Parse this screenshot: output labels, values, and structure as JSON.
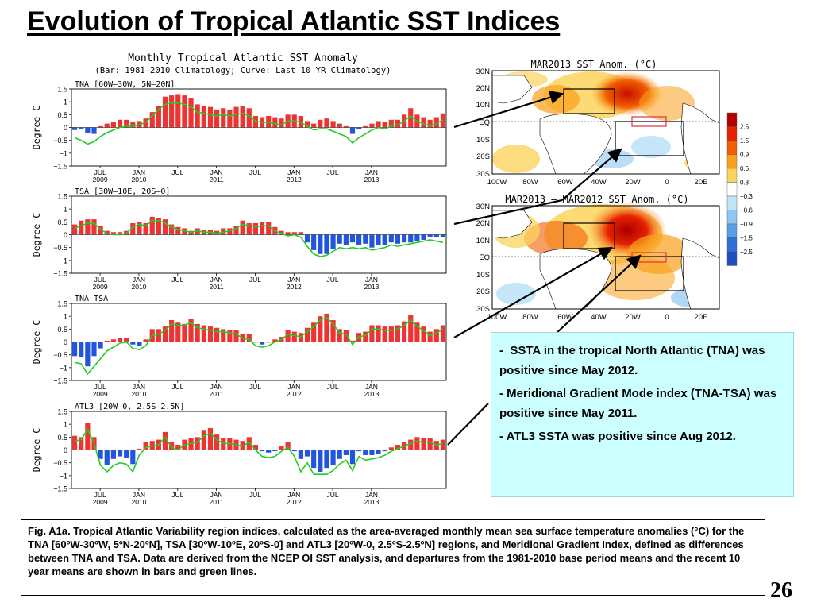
{
  "slide": {
    "title": "Evolution of Tropical Atlantic SST Indices",
    "page_number": "26"
  },
  "chart_header": {
    "title": "Monthly Tropical Atlantic SST Anomaly",
    "subtitle": "(Bar: 1981—2010 Climatology; Curve: Last 10 YR Climatology)"
  },
  "chart_data": [
    {
      "type": "bar",
      "label": "TNA [60W—30W, 5N—20N]",
      "ylabel": "Degree C",
      "ylim": [
        -1.5,
        1.5
      ],
      "yticks": [
        "1.5",
        "1",
        "0.5",
        "0",
        "−0.5",
        "−1",
        "−1.5"
      ],
      "xticks": [
        [
          "JUL",
          "2009"
        ],
        [
          "JAN",
          "2010"
        ],
        [
          "JUL",
          ""
        ],
        [
          "JAN",
          "2011"
        ],
        [
          "JUL",
          ""
        ],
        [
          "JAN",
          "2012"
        ],
        [
          "JUL",
          ""
        ],
        [
          "JAN",
          "2013"
        ]
      ],
      "values": [
        -0.1,
        -0.05,
        -0.2,
        -0.25,
        0.05,
        0.15,
        0.2,
        0.3,
        0.3,
        0.2,
        0.25,
        0.35,
        0.6,
        0.85,
        1.2,
        1.25,
        1.3,
        1.25,
        1.15,
        0.9,
        0.85,
        0.8,
        0.7,
        0.75,
        0.7,
        0.8,
        0.85,
        0.75,
        0.45,
        0.4,
        0.45,
        0.4,
        0.35,
        0.5,
        0.5,
        0.45,
        0.25,
        0.15,
        0.3,
        0.35,
        0.25,
        0.15,
        0.05,
        -0.25,
        -0.05,
        0.05,
        0.15,
        0.25,
        0.2,
        0.3,
        0.3,
        0.5,
        0.75,
        0.5,
        0.4,
        0.3,
        0.4,
        0.55
      ],
      "curve": [
        -0.4,
        -0.5,
        -0.65,
        -0.55,
        -0.35,
        -0.2,
        -0.1,
        0.0,
        0.05,
        0.05,
        0.1,
        0.2,
        0.45,
        0.7,
        0.9,
        0.95,
        0.95,
        0.9,
        0.8,
        0.6,
        0.55,
        0.5,
        0.45,
        0.5,
        0.45,
        0.5,
        0.55,
        0.45,
        0.25,
        0.2,
        0.2,
        0.15,
        0.1,
        0.25,
        0.25,
        0.2,
        0.05,
        -0.1,
        -0.05,
        -0.05,
        -0.15,
        -0.25,
        -0.35,
        -0.6,
        -0.4,
        -0.25,
        -0.1,
        0.0,
        -0.05,
        0.05,
        0.1,
        0.25,
        0.45,
        0.25,
        0.15,
        0.05,
        0.15,
        0.3
      ]
    },
    {
      "type": "bar",
      "label": "TSA [30W—10E, 20S—0]",
      "ylabel": "Degree C",
      "ylim": [
        -1.5,
        1.5
      ],
      "yticks": [
        "1.5",
        "1",
        "0.5",
        "0",
        "−0.5",
        "−1",
        "−1.5"
      ],
      "xticks": [
        [
          "JUL",
          "2009"
        ],
        [
          "JAN",
          "2010"
        ],
        [
          "JUL",
          ""
        ],
        [
          "JAN",
          "2011"
        ],
        [
          "JUL",
          ""
        ],
        [
          "JAN",
          "2012"
        ],
        [
          "JUL",
          ""
        ],
        [
          "JAN",
          "2013"
        ]
      ],
      "values": [
        0.4,
        0.55,
        0.6,
        0.6,
        0.35,
        0.15,
        0.1,
        0.1,
        0.15,
        0.45,
        0.5,
        0.45,
        0.7,
        0.65,
        0.6,
        0.4,
        0.3,
        0.25,
        0.15,
        0.25,
        0.2,
        0.2,
        0.15,
        0.25,
        0.25,
        0.35,
        0.55,
        0.45,
        0.45,
        0.5,
        0.5,
        0.3,
        0.15,
        0.1,
        0.1,
        0.1,
        -0.3,
        -0.6,
        -0.75,
        -0.75,
        -0.55,
        -0.35,
        -0.4,
        -0.3,
        -0.4,
        -0.35,
        -0.5,
        -0.4,
        -0.4,
        -0.3,
        -0.35,
        -0.3,
        -0.3,
        -0.25,
        -0.2,
        -0.1,
        -0.1,
        -0.1
      ],
      "curve": [
        0.25,
        0.35,
        0.45,
        0.45,
        0.2,
        0.05,
        0.0,
        0.0,
        0.05,
        0.3,
        0.4,
        0.35,
        0.55,
        0.55,
        0.45,
        0.3,
        0.2,
        0.15,
        0.1,
        0.15,
        0.1,
        0.1,
        0.05,
        0.1,
        0.15,
        0.25,
        0.4,
        0.35,
        0.3,
        0.35,
        0.35,
        0.15,
        0.05,
        -0.05,
        0.0,
        -0.1,
        -0.45,
        -0.75,
        -0.85,
        -0.8,
        -0.65,
        -0.5,
        -0.55,
        -0.5,
        -0.55,
        -0.5,
        -0.6,
        -0.55,
        -0.5,
        -0.4,
        -0.45,
        -0.4,
        -0.35,
        -0.3,
        -0.25,
        -0.2,
        -0.25,
        -0.3
      ]
    },
    {
      "type": "bar",
      "label": "TNA—TSA",
      "ylabel": "Degree C",
      "ylim": [
        -1.5,
        1.5
      ],
      "yticks": [
        "1.5",
        "1",
        "0.5",
        "0",
        "−0.5",
        "−1",
        "−1.5"
      ],
      "xticks": [
        [
          "JUL",
          "2009"
        ],
        [
          "JAN",
          "2010"
        ],
        [
          "JUL",
          ""
        ],
        [
          "JAN",
          "2011"
        ],
        [
          "JUL",
          ""
        ],
        [
          "JAN",
          "2012"
        ],
        [
          "JUL",
          ""
        ],
        [
          "JAN",
          "2013"
        ]
      ],
      "values": [
        -0.55,
        -0.6,
        -0.95,
        -0.55,
        -0.25,
        0.05,
        0.1,
        0.15,
        0.15,
        -0.1,
        -0.15,
        0.1,
        0.5,
        0.5,
        0.6,
        0.85,
        0.75,
        0.7,
        0.9,
        0.7,
        0.65,
        0.6,
        0.55,
        0.5,
        0.45,
        0.45,
        0.3,
        0.3,
        0.0,
        -0.1,
        0.0,
        0.1,
        0.2,
        0.45,
        0.4,
        0.35,
        0.55,
        0.75,
        1.0,
        1.1,
        0.85,
        0.5,
        0.45,
        0.05,
        0.35,
        0.4,
        0.65,
        0.65,
        0.6,
        0.6,
        0.65,
        0.8,
        1.05,
        0.75,
        0.6,
        0.4,
        0.5,
        0.65
      ],
      "curve": [
        -0.8,
        -0.85,
        -1.25,
        -0.95,
        -0.65,
        -0.35,
        -0.2,
        -0.05,
        0.0,
        -0.25,
        -0.3,
        -0.15,
        0.25,
        0.3,
        0.45,
        0.7,
        0.65,
        0.65,
        0.75,
        0.55,
        0.5,
        0.45,
        0.4,
        0.4,
        0.35,
        0.3,
        0.15,
        0.1,
        -0.15,
        -0.2,
        -0.15,
        0.0,
        0.1,
        0.3,
        0.25,
        0.2,
        0.4,
        0.6,
        0.85,
        0.95,
        0.7,
        0.35,
        0.3,
        -0.1,
        0.2,
        0.25,
        0.5,
        0.5,
        0.45,
        0.45,
        0.5,
        0.65,
        0.85,
        0.6,
        0.45,
        0.25,
        0.35,
        0.5
      ]
    },
    {
      "type": "bar",
      "label": "ATL3 [20W—0, 2.5S—2.5N]",
      "ylabel": "Degree C",
      "ylim": [
        -1.5,
        1.5
      ],
      "yticks": [
        "1.5",
        "1",
        "0.5",
        "0",
        "−0.5",
        "−1",
        "−1.5"
      ],
      "xticks": [
        [
          "JUL",
          "2009"
        ],
        [
          "JAN",
          "2010"
        ],
        [
          "JUL",
          ""
        ],
        [
          "JAN",
          "2011"
        ],
        [
          "JUL",
          ""
        ],
        [
          "JAN",
          "2012"
        ],
        [
          "JUL",
          ""
        ],
        [
          "JAN",
          "2013"
        ]
      ],
      "values": [
        0.55,
        0.5,
        1.05,
        0.5,
        -0.35,
        -0.6,
        -0.35,
        -0.25,
        -0.3,
        -0.55,
        0.05,
        0.3,
        0.35,
        0.4,
        0.7,
        0.3,
        0.2,
        0.4,
        0.45,
        0.5,
        0.75,
        0.85,
        0.6,
        0.45,
        0.45,
        0.4,
        0.35,
        0.5,
        0.2,
        -0.05,
        -0.1,
        -0.05,
        0.15,
        0.3,
        -0.05,
        -0.35,
        -0.25,
        -0.7,
        -0.85,
        -0.7,
        -0.6,
        -0.35,
        -0.2,
        -0.55,
        -0.05,
        -0.2,
        -0.2,
        -0.15,
        -0.05,
        0.1,
        0.2,
        0.3,
        0.4,
        0.5,
        0.45,
        0.45,
        0.35,
        0.4
      ],
      "curve": [
        0.35,
        0.4,
        0.8,
        0.25,
        -0.6,
        -0.85,
        -0.6,
        -0.5,
        -0.55,
        -0.85,
        -0.2,
        0.1,
        0.15,
        0.2,
        0.5,
        0.1,
        0.0,
        0.2,
        0.25,
        0.3,
        0.55,
        0.65,
        0.4,
        0.25,
        0.25,
        0.2,
        0.15,
        0.3,
        0.0,
        -0.25,
        -0.3,
        -0.25,
        -0.05,
        0.1,
        -0.25,
        -0.85,
        -0.5,
        -0.95,
        -0.95,
        -0.95,
        -0.8,
        -0.55,
        -0.4,
        -0.8,
        -0.25,
        -0.4,
        -0.35,
        -0.3,
        -0.2,
        -0.05,
        0.05,
        0.15,
        0.25,
        0.35,
        0.3,
        0.3,
        0.2,
        0.25
      ]
    }
  ],
  "maps": [
    {
      "title": "MAR2013  SST  Anom.  (°C)",
      "lat_labels": [
        "30N",
        "20N",
        "10N",
        "EQ",
        "10S",
        "20S",
        "30S"
      ],
      "lon_labels": [
        "100W",
        "80W",
        "60W",
        "40W",
        "20W",
        "0",
        "20E"
      ]
    },
    {
      "title": "MAR2013  —  MAR2012  SST  Anom.  (°C)",
      "lat_labels": [
        "30N",
        "20N",
        "10N",
        "EQ",
        "10S",
        "20S",
        "30S"
      ],
      "lon_labels": [
        "100W",
        "80W",
        "60W",
        "40W",
        "20W",
        "0",
        "20E"
      ]
    }
  ],
  "colorbar": {
    "labels": [
      "2.5",
      "1.5",
      "0.9",
      "0.6",
      "0.3",
      "−0.3",
      "−0.6",
      "−0.9",
      "−1.5",
      "−2.5"
    ],
    "colors": [
      "#b40000",
      "#e62200",
      "#f25e00",
      "#f9a01a",
      "#fbd35e",
      "#ffffff",
      "#bfe3f7",
      "#8ec7f0",
      "#5a9fe6",
      "#2f6fd6",
      "#1f4fc0"
    ]
  },
  "info": {
    "bullet1": "SSTA in the tropical North Atlantic (TNA)  was positive since May 2012.",
    "bullet2": "Meridional Gradient Mode index (TNA-TSA) was positive since May 2011.",
    "bullet3": "ATL3 SSTA was  positive since  Aug 2012.",
    "dash": "-"
  },
  "caption": "Fig. A1a. Tropical Atlantic Variability region indices, calculated as the area-averaged monthly mean sea surface temperature anomalies (°C) for the TNA [60ºW-30ºW, 5ºN-20ºN], TSA [30ºW-10ºE, 20ºS-0] and ATL3 [20ºW-0, 2.5ºS-2.5ºN] regions, and Meridional Gradient Index, defined as differences between TNA and TSA. Data are derived from the NCEP OI SST analysis, and departures from the 1981-2010 base period means and the recent 10 year means are shown in bars and green lines.",
  "colors": {
    "positive_bar": "#ee3333",
    "negative_bar": "#2255dd",
    "curve": "#22cc22",
    "info_bg": "#ccffff"
  }
}
